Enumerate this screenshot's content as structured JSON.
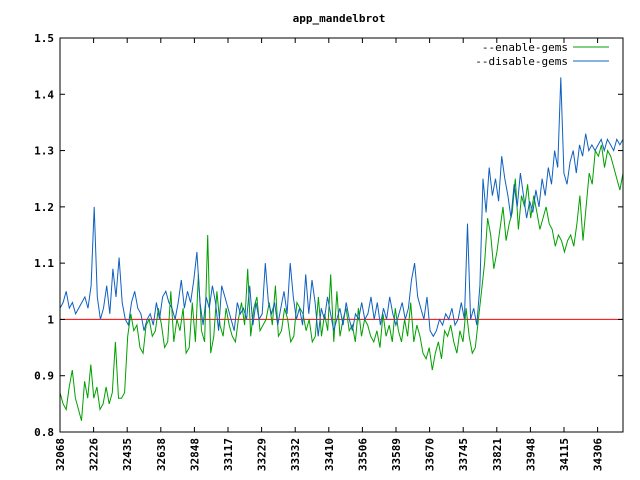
{
  "chart_data": {
    "type": "line",
    "title": "app_mandelbrot",
    "xlabel": "",
    "ylabel": "",
    "ylim": [
      0.8,
      1.5
    ],
    "yticks": [
      "0.8",
      "0.9",
      "1",
      "1.1",
      "1.2",
      "1.3",
      "1.4",
      "1.5"
    ],
    "xticks": [
      "32068",
      "32226",
      "32435",
      "32638",
      "32848",
      "33117",
      "33229",
      "33332",
      "33410",
      "33506",
      "33589",
      "33670",
      "33745",
      "33821",
      "33948",
      "34115",
      "34306"
    ],
    "grid": false,
    "legend_position": "top-right",
    "reference_line": {
      "y": 1.0,
      "color": "#ff0000"
    },
    "series": [
      {
        "name": "--enable-gems",
        "color": "#00a000",
        "values": [
          0.87,
          0.85,
          0.84,
          0.88,
          0.91,
          0.86,
          0.84,
          0.82,
          0.89,
          0.86,
          0.92,
          0.86,
          0.88,
          0.84,
          0.85,
          0.88,
          0.85,
          0.87,
          0.96,
          0.86,
          0.86,
          0.87,
          0.97,
          1.01,
          0.98,
          0.99,
          0.95,
          0.94,
          0.99,
          1.0,
          0.97,
          0.98,
          1.02,
          0.99,
          0.95,
          0.96,
          1.05,
          0.96,
          1.0,
          0.98,
          1.02,
          0.94,
          0.95,
          1.03,
          0.96,
          1.08,
          0.98,
          0.96,
          1.15,
          0.94,
          0.97,
          1.05,
          0.99,
          0.97,
          1.02,
          0.99,
          0.97,
          0.96,
          1.0,
          1.03,
          0.99,
          1.09,
          0.97,
          1.02,
          1.04,
          0.98,
          0.99,
          1.0,
          1.03,
          0.99,
          1.06,
          0.97,
          0.98,
          1.02,
          1.0,
          0.96,
          0.97,
          1.03,
          1.02,
          1.01,
          0.98,
          1.0,
          0.96,
          0.97,
          1.04,
          0.97,
          1.01,
          0.98,
          1.08,
          0.96,
          1.05,
          0.97,
          1.0,
          1.02,
          0.98,
          0.99,
          0.96,
          1.02,
          0.97,
          1.0,
          0.99,
          0.97,
          0.96,
          0.98,
          0.95,
          1.01,
          0.97,
          0.99,
          0.96,
          1.02,
          0.98,
          0.96,
          1.0,
          0.97,
          1.03,
          0.96,
          0.99,
          0.97,
          0.94,
          0.93,
          0.95,
          0.91,
          0.94,
          0.96,
          0.93,
          0.98,
          0.97,
          0.99,
          0.96,
          0.94,
          0.98,
          0.96,
          1.02,
          0.97,
          0.94,
          0.95,
          1.0,
          1.05,
          1.1,
          1.18,
          1.15,
          1.09,
          1.12,
          1.16,
          1.2,
          1.14,
          1.17,
          1.19,
          1.25,
          1.16,
          1.22,
          1.2,
          1.24,
          1.18,
          1.22,
          1.19,
          1.16,
          1.18,
          1.2,
          1.17,
          1.16,
          1.13,
          1.15,
          1.14,
          1.12,
          1.14,
          1.15,
          1.13,
          1.17,
          1.22,
          1.14,
          1.2,
          1.26,
          1.24,
          1.3,
          1.29,
          1.31,
          1.27,
          1.3,
          1.29,
          1.27,
          1.25,
          1.23,
          1.26
        ]
      },
      {
        "name": "--disable-gems",
        "color": "#1060c0",
        "values": [
          1.02,
          1.03,
          1.05,
          1.02,
          1.03,
          1.01,
          1.02,
          1.03,
          1.04,
          1.02,
          1.06,
          1.2,
          1.04,
          1.0,
          1.02,
          1.06,
          1.01,
          1.09,
          1.04,
          1.11,
          1.03,
          1.0,
          0.99,
          1.03,
          1.05,
          1.02,
          1.01,
          0.98,
          1.0,
          1.01,
          0.99,
          1.03,
          1.0,
          1.04,
          1.05,
          1.03,
          1.02,
          1.0,
          1.03,
          1.07,
          1.02,
          1.05,
          1.03,
          1.07,
          1.12,
          1.03,
          0.99,
          1.04,
          1.02,
          1.06,
          1.03,
          0.98,
          1.06,
          1.04,
          1.02,
          1.0,
          0.98,
          1.03,
          1.01,
          1.02,
          1.0,
          1.06,
          0.99,
          1.03,
          1.0,
          1.01,
          1.1,
          1.03,
          1.01,
          1.03,
          0.99,
          1.02,
          1.05,
          1.01,
          1.1,
          1.04,
          1.0,
          1.02,
          0.99,
          1.08,
          1.01,
          1.07,
          1.03,
          0.97,
          1.02,
          1.0,
          1.04,
          1.01,
          0.98,
          1.0,
          1.02,
          0.99,
          1.03,
          1.0,
          0.98,
          1.01,
          1.0,
          1.03,
          1.0,
          1.01,
          1.04,
          1.0,
          1.03,
          0.99,
          1.02,
          1.0,
          1.04,
          1.01,
          0.99,
          1.01,
          1.03,
          1.0,
          1.02,
          1.07,
          1.1,
          1.04,
          1.02,
          1.0,
          1.04,
          0.98,
          0.97,
          0.98,
          1.0,
          0.99,
          1.01,
          1.0,
          1.02,
          0.99,
          1.0,
          1.03,
          1.0,
          1.17,
          1.0,
          1.02,
          0.99,
          1.06,
          1.25,
          1.19,
          1.27,
          1.22,
          1.25,
          1.21,
          1.29,
          1.25,
          1.22,
          1.18,
          1.24,
          1.2,
          1.26,
          1.22,
          1.18,
          1.21,
          1.19,
          1.23,
          1.2,
          1.25,
          1.22,
          1.27,
          1.24,
          1.3,
          1.27,
          1.43,
          1.26,
          1.24,
          1.28,
          1.3,
          1.26,
          1.31,
          1.29,
          1.33,
          1.3,
          1.31,
          1.3,
          1.31,
          1.32,
          1.3,
          1.32,
          1.31,
          1.3,
          1.32,
          1.31,
          1.32
        ]
      }
    ]
  }
}
